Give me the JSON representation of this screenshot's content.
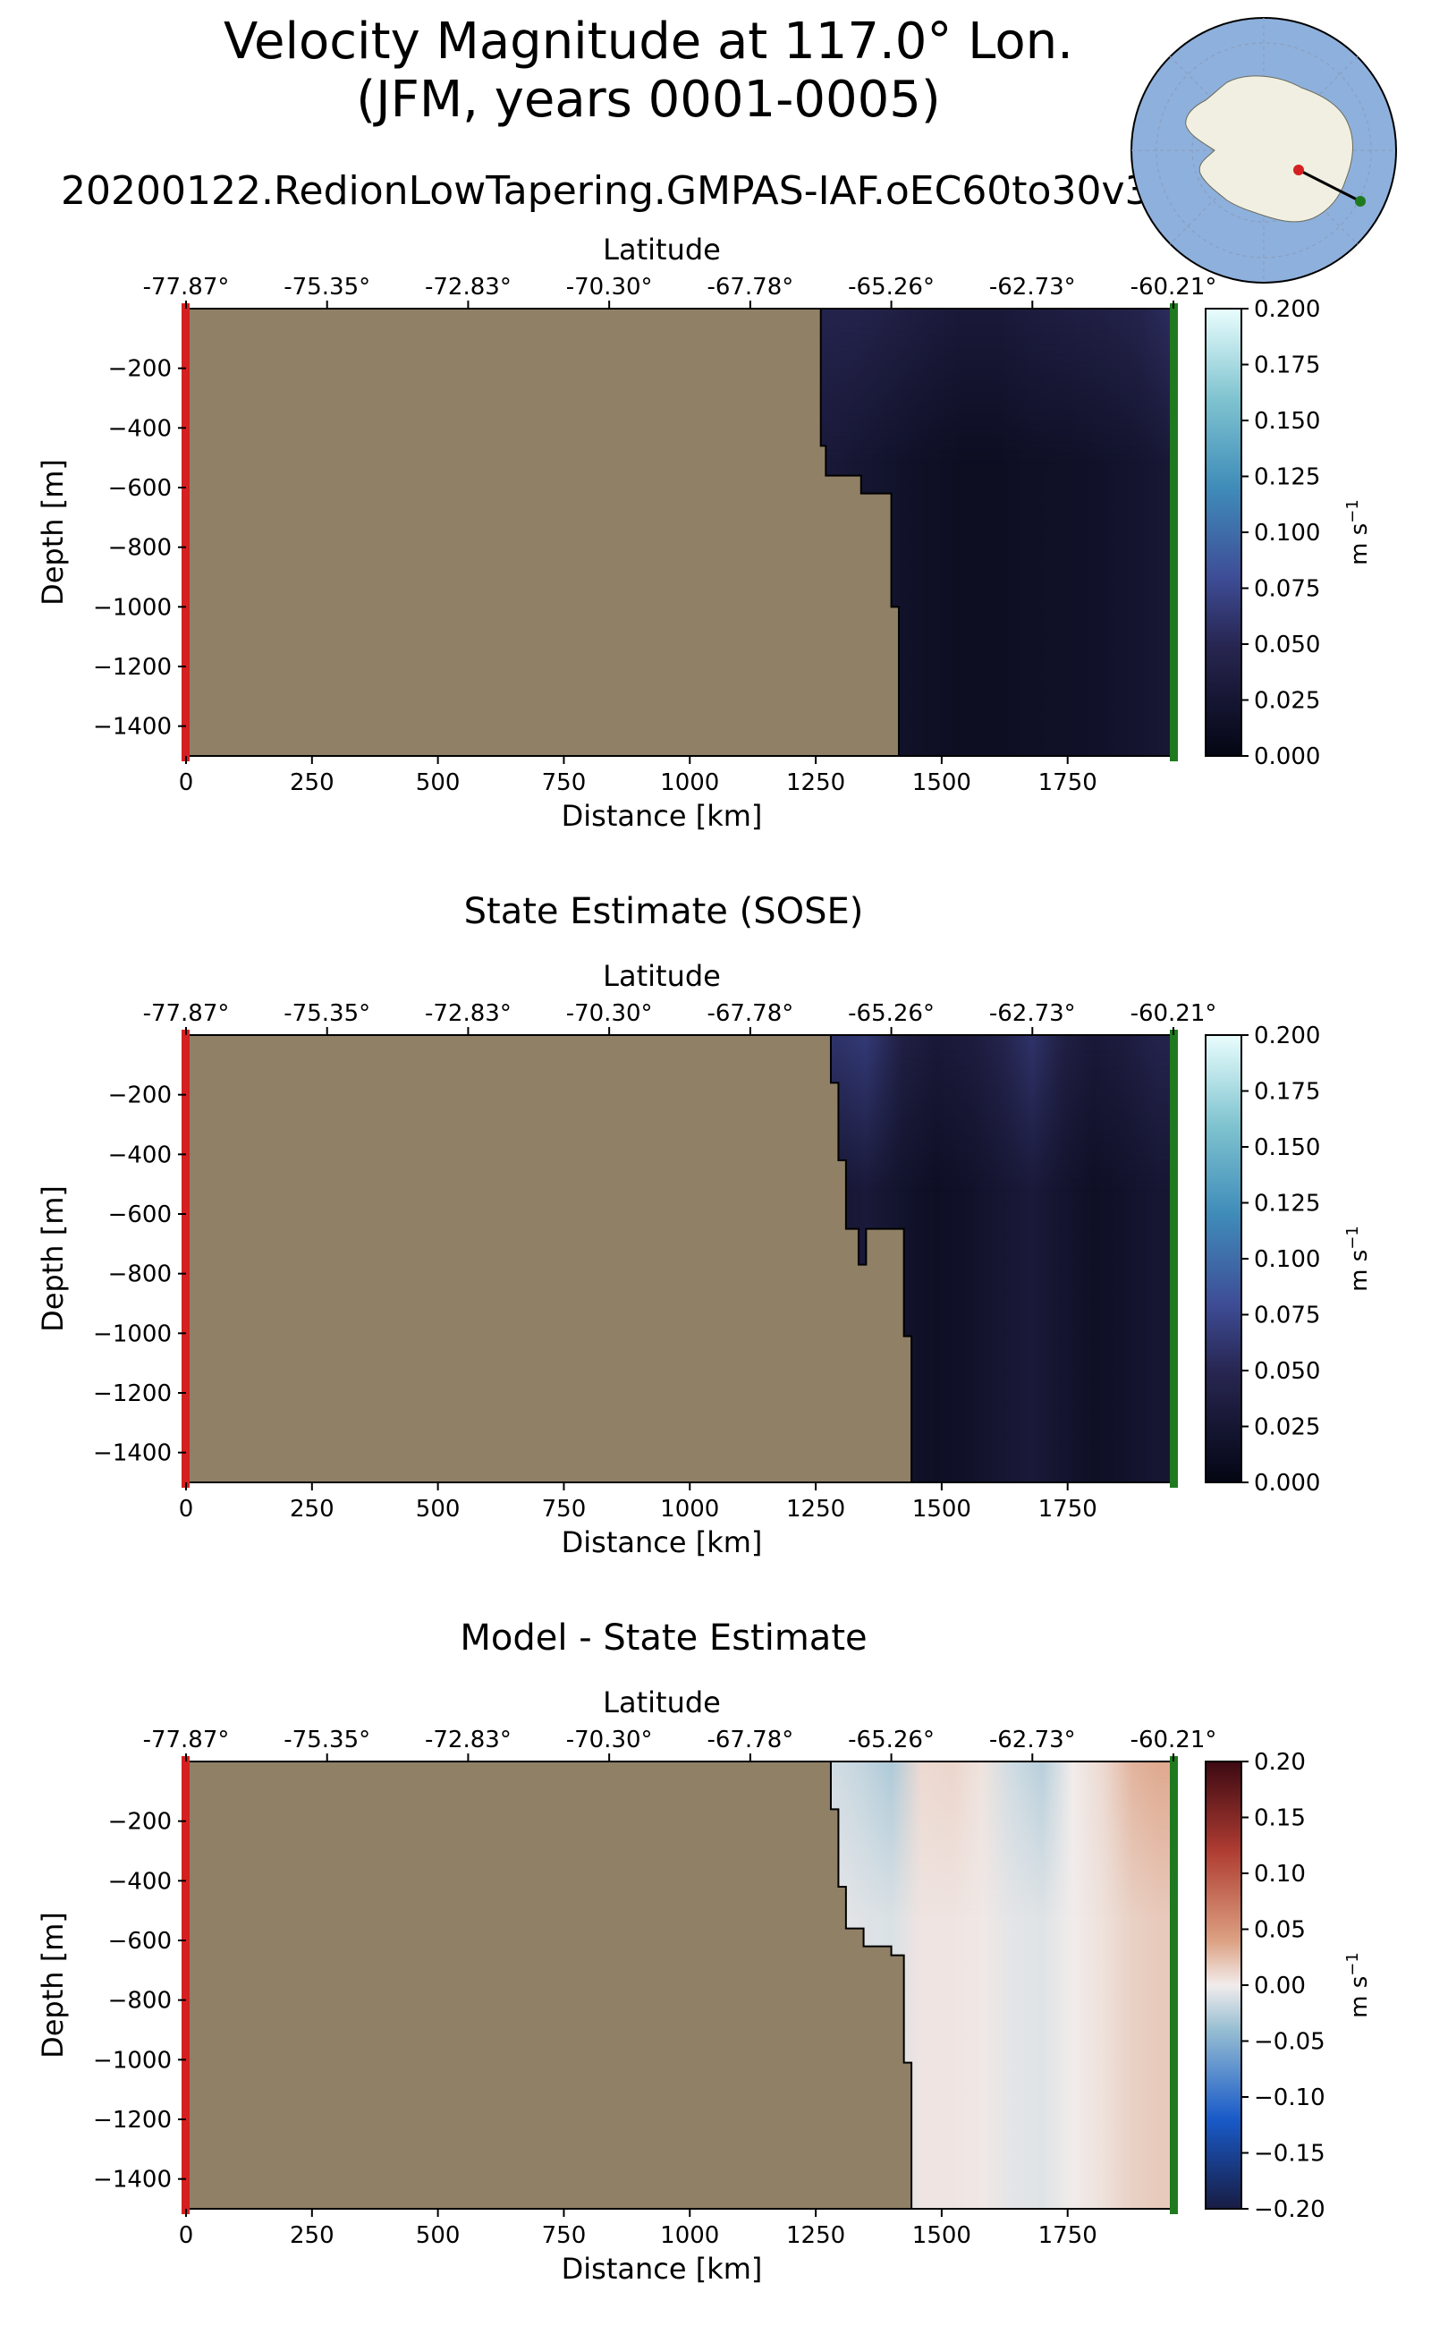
{
  "figure": {
    "title_line1": "Velocity Magnitude at 117.0° Lon.",
    "title_line2": "(JFM, years 0001-0005)",
    "run_name": "20200122.RedionLowTapering.GMPAS-IAF.oEC60to30v3"
  },
  "colors": {
    "land": "#8f8066",
    "start_marker": "#d42020",
    "end_marker": "#1f7a1f",
    "ocean_bg": "#8eb0dc",
    "continent": "#f0efe1",
    "transect_line": "#000000"
  },
  "inset_map": {
    "description_icon": "antarctica-polar-map"
  },
  "chart_data": [
    {
      "type": "heatmap",
      "title": "",
      "xlabel": "Distance [km]",
      "ylabel": "Depth [m]",
      "top_axis_label": "Latitude",
      "xlim": [
        0,
        1960
      ],
      "ylim": [
        -1500,
        0
      ],
      "x_ticks": [
        0,
        250,
        500,
        750,
        1000,
        1250,
        1500,
        1750
      ],
      "x_tick_labels": [
        "0",
        "250",
        "500",
        "750",
        "1000",
        "1250",
        "1500",
        "1750"
      ],
      "y_ticks": [
        -200,
        -400,
        -600,
        -800,
        -1000,
        -1200,
        -1400
      ],
      "y_tick_labels": [
        "−200",
        "−400",
        "−600",
        "−800",
        "−1000",
        "−1200",
        "−1400"
      ],
      "lat_ticks_km": [
        0,
        280,
        560,
        840,
        1120,
        1400,
        1680,
        1960
      ],
      "lat_tick_labels": [
        "-77.87°",
        "-75.35°",
        "-72.83°",
        "-70.30°",
        "-67.78°",
        "-65.26°",
        "-62.73°",
        "-60.21°"
      ],
      "colorbar": {
        "cmap": "ice",
        "vmin": 0.0,
        "vmax": 0.2,
        "ticks": [
          0.0,
          0.025,
          0.05,
          0.075,
          0.1,
          0.125,
          0.15,
          0.175,
          0.2
        ],
        "tick_labels": [
          "0.000",
          "0.025",
          "0.050",
          "0.075",
          "0.100",
          "0.125",
          "0.150",
          "0.175",
          "0.200"
        ],
        "label": "m s",
        "label_exponent": "−1"
      },
      "land_boundary": [
        [
          1260,
          0
        ],
        [
          1260,
          -460
        ],
        [
          1270,
          -460
        ],
        [
          1270,
          -560
        ],
        [
          1340,
          -560
        ],
        [
          1340,
          -620
        ],
        [
          1400,
          -620
        ],
        [
          1400,
          -1000
        ],
        [
          1415,
          -1000
        ],
        [
          1415,
          -1500
        ]
      ],
      "field": {
        "x": [
          1270,
          1330,
          1400,
          1470,
          1540,
          1610,
          1680,
          1750,
          1820,
          1890,
          1950
        ],
        "surface_values": [
          0.045,
          0.045,
          0.04,
          0.035,
          0.03,
          0.03,
          0.035,
          0.038,
          0.04,
          0.045,
          0.055
        ],
        "deep_values": [
          0.03,
          0.025,
          0.02,
          0.015,
          0.012,
          0.012,
          0.015,
          0.016,
          0.018,
          0.022,
          0.028
        ]
      }
    },
    {
      "type": "heatmap",
      "title": "State Estimate (SOSE)",
      "xlabel": "Distance [km]",
      "ylabel": "Depth [m]",
      "top_axis_label": "Latitude",
      "xlim": [
        0,
        1960
      ],
      "ylim": [
        -1500,
        0
      ],
      "x_ticks": [
        0,
        250,
        500,
        750,
        1000,
        1250,
        1500,
        1750
      ],
      "x_tick_labels": [
        "0",
        "250",
        "500",
        "750",
        "1000",
        "1250",
        "1500",
        "1750"
      ],
      "y_ticks": [
        -200,
        -400,
        -600,
        -800,
        -1000,
        -1200,
        -1400
      ],
      "y_tick_labels": [
        "−200",
        "−400",
        "−600",
        "−800",
        "−1000",
        "−1200",
        "−1400"
      ],
      "lat_ticks_km": [
        0,
        280,
        560,
        840,
        1120,
        1400,
        1680,
        1960
      ],
      "lat_tick_labels": [
        "-77.87°",
        "-75.35°",
        "-72.83°",
        "-70.30°",
        "-67.78°",
        "-65.26°",
        "-62.73°",
        "-60.21°"
      ],
      "colorbar": {
        "cmap": "ice",
        "vmin": 0.0,
        "vmax": 0.2,
        "ticks": [
          0.0,
          0.025,
          0.05,
          0.075,
          0.1,
          0.125,
          0.15,
          0.175,
          0.2
        ],
        "tick_labels": [
          "0.000",
          "0.025",
          "0.050",
          "0.075",
          "0.100",
          "0.125",
          "0.150",
          "0.175",
          "0.200"
        ],
        "label": "m s",
        "label_exponent": "−1"
      },
      "land_boundary": [
        [
          1280,
          0
        ],
        [
          1280,
          -160
        ],
        [
          1295,
          -160
        ],
        [
          1295,
          -420
        ],
        [
          1310,
          -420
        ],
        [
          1310,
          -650
        ],
        [
          1335,
          -650
        ],
        [
          1335,
          -770
        ],
        [
          1350,
          -770
        ],
        [
          1350,
          -650
        ],
        [
          1425,
          -650
        ],
        [
          1425,
          -1010
        ],
        [
          1440,
          -1010
        ],
        [
          1440,
          -1500
        ]
      ],
      "field": {
        "x": [
          1290,
          1350,
          1420,
          1490,
          1560,
          1620,
          1680,
          1740,
          1800,
          1860,
          1930
        ],
        "surface_values": [
          0.06,
          0.065,
          0.04,
          0.03,
          0.035,
          0.045,
          0.06,
          0.04,
          0.03,
          0.035,
          0.045
        ],
        "deep_values": [
          0.025,
          0.03,
          0.02,
          0.014,
          0.018,
          0.025,
          0.03,
          0.022,
          0.015,
          0.018,
          0.025
        ]
      }
    },
    {
      "type": "heatmap",
      "title": "Model - State Estimate",
      "xlabel": "Distance [km]",
      "ylabel": "Depth [m]",
      "top_axis_label": "Latitude",
      "xlim": [
        0,
        1960
      ],
      "ylim": [
        -1500,
        0
      ],
      "x_ticks": [
        0,
        250,
        500,
        750,
        1000,
        1250,
        1500,
        1750
      ],
      "x_tick_labels": [
        "0",
        "250",
        "500",
        "750",
        "1000",
        "1250",
        "1500",
        "1750"
      ],
      "y_ticks": [
        -200,
        -400,
        -600,
        -800,
        -1000,
        -1200,
        -1400
      ],
      "y_tick_labels": [
        "−200",
        "−400",
        "−600",
        "−800",
        "−1000",
        "−1200",
        "−1400"
      ],
      "lat_ticks_km": [
        0,
        280,
        560,
        840,
        1120,
        1400,
        1680,
        1960
      ],
      "lat_tick_labels": [
        "-77.87°",
        "-75.35°",
        "-72.83°",
        "-70.30°",
        "-67.78°",
        "-65.26°",
        "-62.73°",
        "-60.21°"
      ],
      "colorbar": {
        "cmap": "balance",
        "vmin": -0.2,
        "vmax": 0.2,
        "ticks": [
          -0.2,
          -0.15,
          -0.1,
          -0.05,
          0.0,
          0.05,
          0.1,
          0.15,
          0.2
        ],
        "tick_labels": [
          "−0.20",
          "−0.15",
          "−0.10",
          "−0.05",
          "0.00",
          "0.05",
          "0.10",
          "0.15",
          "0.20"
        ],
        "label": "m s",
        "label_exponent": "−1"
      },
      "land_boundary": [
        [
          1280,
          0
        ],
        [
          1280,
          -160
        ],
        [
          1295,
          -160
        ],
        [
          1295,
          -420
        ],
        [
          1310,
          -420
        ],
        [
          1310,
          -560
        ],
        [
          1345,
          -560
        ],
        [
          1345,
          -620
        ],
        [
          1400,
          -620
        ],
        [
          1400,
          -650
        ],
        [
          1425,
          -650
        ],
        [
          1425,
          -1010
        ],
        [
          1440,
          -1010
        ],
        [
          1440,
          -1500
        ]
      ],
      "field": {
        "x": [
          1290,
          1340,
          1400,
          1460,
          1520,
          1580,
          1640,
          1700,
          1760,
          1820,
          1880,
          1930
        ],
        "surface_values": [
          -0.015,
          -0.02,
          -0.03,
          0.01,
          0.012,
          0.005,
          -0.015,
          -0.025,
          0.0,
          0.01,
          0.03,
          0.035
        ],
        "deep_values": [
          -0.005,
          -0.008,
          -0.01,
          0.004,
          0.004,
          0.002,
          -0.006,
          -0.008,
          0.0,
          0.006,
          0.015,
          0.018
        ]
      }
    }
  ]
}
